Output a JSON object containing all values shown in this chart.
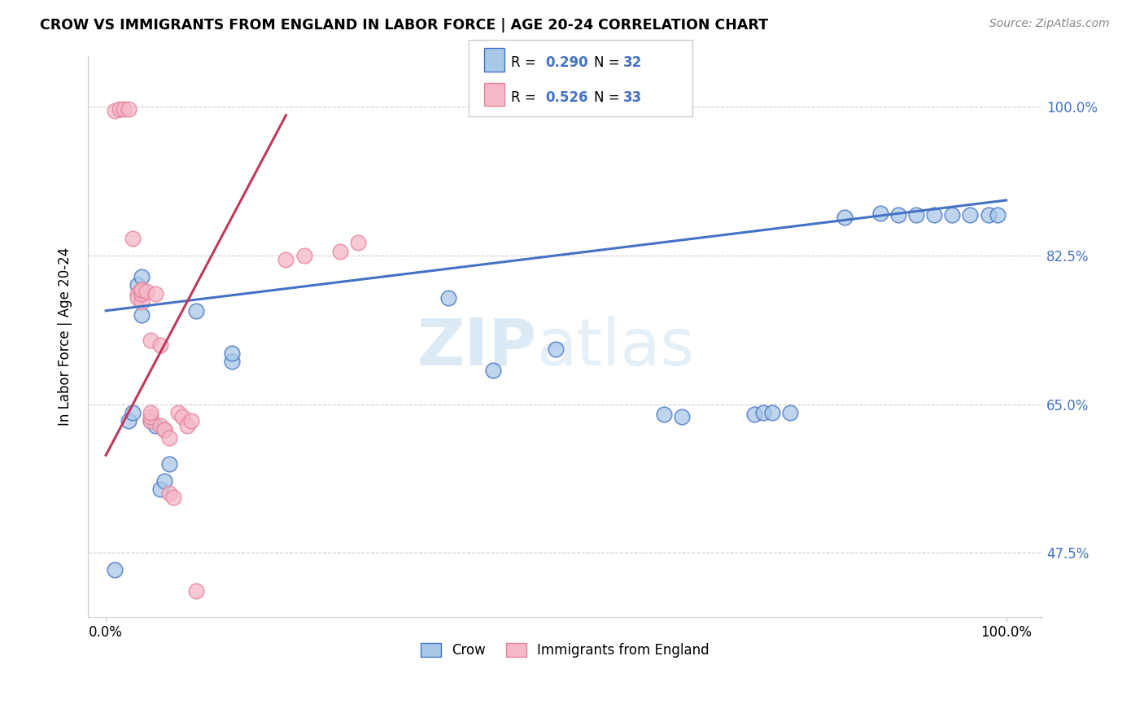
{
  "title": "CROW VS IMMIGRANTS FROM ENGLAND IN LABOR FORCE | AGE 20-24 CORRELATION CHART",
  "source": "Source: ZipAtlas.com",
  "ylabel": "In Labor Force | Age 20-24",
  "blue_color": "#4472C4",
  "pink_color": "#E8829A",
  "blue_fill": "#a8c8e8",
  "pink_fill": "#f4b8c8",
  "blue_line_color": "#4472C4",
  "pink_line_color": "#C0395A",
  "crow_R": "0.290",
  "crow_N": "32",
  "england_R": "0.526",
  "england_N": "33",
  "watermark": "ZIPatlas",
  "crow_points": [
    [
      0.01,
      0.455
    ],
    [
      0.025,
      0.63
    ],
    [
      0.03,
      0.64
    ],
    [
      0.035,
      0.79
    ],
    [
      0.04,
      0.8
    ],
    [
      0.04,
      0.755
    ],
    [
      0.05,
      0.63
    ],
    [
      0.055,
      0.625
    ],
    [
      0.06,
      0.55
    ],
    [
      0.065,
      0.56
    ],
    [
      0.07,
      0.58
    ],
    [
      0.1,
      0.76
    ],
    [
      0.14,
      0.7
    ],
    [
      0.14,
      0.71
    ],
    [
      0.38,
      0.775
    ],
    [
      0.43,
      0.69
    ],
    [
      0.5,
      0.715
    ],
    [
      0.62,
      0.638
    ],
    [
      0.64,
      0.635
    ],
    [
      0.72,
      0.638
    ],
    [
      0.73,
      0.64
    ],
    [
      0.74,
      0.64
    ],
    [
      0.76,
      0.64
    ],
    [
      0.82,
      0.87
    ],
    [
      0.86,
      0.875
    ],
    [
      0.88,
      0.873
    ],
    [
      0.9,
      0.873
    ],
    [
      0.92,
      0.873
    ],
    [
      0.94,
      0.873
    ],
    [
      0.96,
      0.873
    ],
    [
      0.98,
      0.873
    ],
    [
      0.99,
      0.873
    ]
  ],
  "england_points": [
    [
      0.01,
      0.995
    ],
    [
      0.015,
      0.997
    ],
    [
      0.02,
      0.997
    ],
    [
      0.025,
      0.997
    ],
    [
      0.03,
      0.845
    ],
    [
      0.035,
      0.78
    ],
    [
      0.035,
      0.775
    ],
    [
      0.04,
      0.77
    ],
    [
      0.04,
      0.78
    ],
    [
      0.04,
      0.785
    ],
    [
      0.04,
      0.785
    ],
    [
      0.045,
      0.783
    ],
    [
      0.05,
      0.63
    ],
    [
      0.05,
      0.635
    ],
    [
      0.05,
      0.64
    ],
    [
      0.05,
      0.725
    ],
    [
      0.055,
      0.78
    ],
    [
      0.06,
      0.625
    ],
    [
      0.06,
      0.72
    ],
    [
      0.065,
      0.62
    ],
    [
      0.065,
      0.62
    ],
    [
      0.07,
      0.61
    ],
    [
      0.07,
      0.545
    ],
    [
      0.075,
      0.54
    ],
    [
      0.08,
      0.64
    ],
    [
      0.085,
      0.635
    ],
    [
      0.09,
      0.625
    ],
    [
      0.095,
      0.63
    ],
    [
      0.1,
      0.43
    ],
    [
      0.2,
      0.82
    ],
    [
      0.22,
      0.825
    ],
    [
      0.26,
      0.83
    ],
    [
      0.28,
      0.84
    ]
  ],
  "xlim": [
    -0.02,
    1.04
  ],
  "ylim": [
    0.4,
    1.06
  ],
  "y_ticks": [
    0.475,
    0.65,
    0.825,
    1.0
  ],
  "y_labels": [
    "47.5%",
    "65.0%",
    "82.5%",
    "100.0%"
  ],
  "x_ticks": [
    0.0,
    1.0
  ],
  "x_labels": [
    "0.0%",
    "100.0%"
  ],
  "blue_trend_x": [
    0.0,
    1.0
  ],
  "blue_trend_y": [
    0.76,
    0.89
  ],
  "pink_trend_x": [
    0.0,
    0.2
  ],
  "pink_trend_y": [
    0.59,
    0.99
  ]
}
